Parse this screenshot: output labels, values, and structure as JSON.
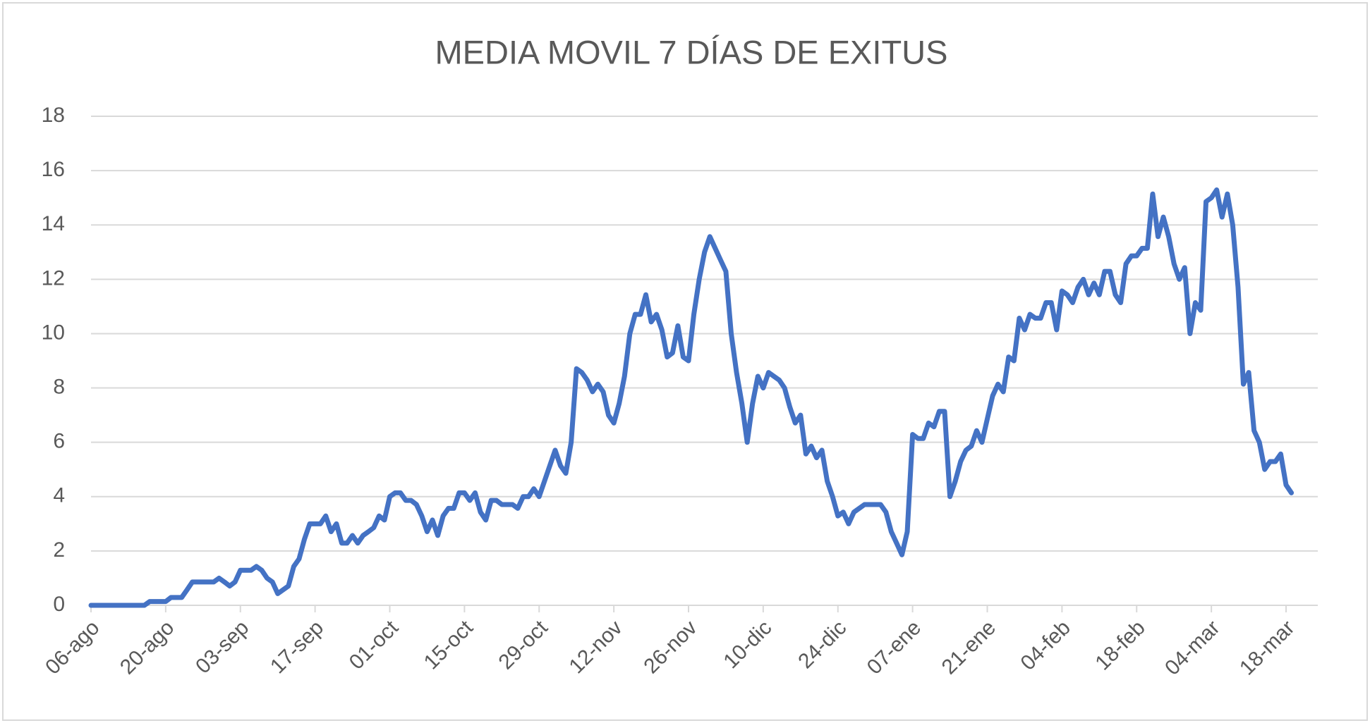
{
  "chart_data": {
    "type": "line",
    "title": "MEDIA MOVIL 7 DÍAS DE EXITUS",
    "categories": [
      "06-ago",
      null,
      null,
      null,
      null,
      null,
      null,
      null,
      null,
      null,
      null,
      null,
      null,
      null,
      "20-ago",
      null,
      null,
      null,
      null,
      null,
      null,
      null,
      null,
      null,
      null,
      null,
      null,
      null,
      "03-sep",
      null,
      null,
      null,
      null,
      null,
      null,
      null,
      null,
      null,
      null,
      null,
      null,
      null,
      "17-sep",
      null,
      null,
      null,
      null,
      null,
      null,
      null,
      null,
      null,
      null,
      null,
      null,
      null,
      "01-oct",
      null,
      null,
      null,
      null,
      null,
      null,
      null,
      null,
      null,
      null,
      null,
      null,
      null,
      "15-oct",
      null,
      null,
      null,
      null,
      null,
      null,
      null,
      null,
      null,
      null,
      null,
      null,
      null,
      "29-oct",
      null,
      null,
      null,
      null,
      null,
      null,
      null,
      null,
      null,
      null,
      null,
      null,
      null,
      "12-nov",
      null,
      null,
      null,
      null,
      null,
      null,
      null,
      null,
      null,
      null,
      null,
      null,
      null,
      "26-nov",
      null,
      null,
      null,
      null,
      null,
      null,
      null,
      null,
      null,
      null,
      null,
      null,
      null,
      "10-dic",
      null,
      null,
      null,
      null,
      null,
      null,
      null,
      null,
      null,
      null,
      null,
      null,
      null,
      "24-dic",
      null,
      null,
      null,
      null,
      null,
      null,
      null,
      null,
      null,
      null,
      null,
      null,
      null,
      "07-ene",
      null,
      null,
      null,
      null,
      null,
      null,
      null,
      null,
      null,
      null,
      null,
      null,
      null,
      "21-ene",
      null,
      null,
      null,
      null,
      null,
      null,
      null,
      null,
      null,
      null,
      null,
      null,
      null,
      "04-feb",
      null,
      null,
      null,
      null,
      null,
      null,
      null,
      null,
      null,
      null,
      null,
      null,
      null,
      "18-feb",
      null,
      null,
      null,
      null,
      null,
      null,
      null,
      null,
      null,
      null,
      null,
      null,
      null,
      "04-mar",
      null,
      null,
      null,
      null,
      null,
      null,
      null,
      null,
      null,
      null,
      null,
      null,
      null,
      "18-mar",
      null
    ],
    "series": [
      {
        "name": "Media móvil",
        "color": "#4472c4",
        "values": [
          0,
          0,
          0,
          0,
          0,
          0,
          0,
          0,
          0,
          0,
          0,
          0.14,
          0.14,
          0.14,
          0.14,
          0.29,
          0.29,
          0.29,
          0.57,
          0.86,
          0.86,
          0.86,
          0.86,
          0.86,
          1.0,
          0.86,
          0.71,
          0.86,
          1.29,
          1.29,
          1.29,
          1.43,
          1.29,
          1.0,
          0.86,
          0.43,
          0.57,
          0.71,
          1.43,
          1.71,
          2.43,
          3.0,
          3.0,
          3.0,
          3.29,
          2.71,
          3.0,
          2.29,
          2.29,
          2.57,
          2.29,
          2.57,
          2.71,
          2.86,
          3.29,
          3.14,
          4.0,
          4.14,
          4.14,
          3.86,
          3.86,
          3.71,
          3.29,
          2.71,
          3.14,
          2.57,
          3.29,
          3.57,
          3.57,
          4.14,
          4.14,
          3.86,
          4.14,
          3.43,
          3.14,
          3.86,
          3.86,
          3.71,
          3.71,
          3.71,
          3.57,
          4.0,
          4.0,
          4.29,
          4.0,
          4.57,
          5.14,
          5.71,
          5.14,
          4.86,
          6.0,
          8.71,
          8.57,
          8.29,
          7.86,
          8.14,
          7.86,
          7.0,
          6.71,
          7.43,
          8.43,
          10.0,
          10.71,
          10.71,
          11.43,
          10.43,
          10.71,
          10.14,
          9.14,
          9.29,
          10.29,
          9.14,
          9.0,
          10.71,
          12.0,
          13.0,
          13.57,
          13.14,
          12.71,
          12.29,
          10.0,
          8.57,
          7.43,
          6.0,
          7.43,
          8.43,
          8.0,
          8.57,
          8.43,
          8.29,
          8.0,
          7.29,
          6.71,
          7.0,
          5.57,
          5.86,
          5.43,
          5.71,
          4.57,
          4.0,
          3.29,
          3.43,
          3.0,
          3.43,
          3.57,
          3.71,
          3.71,
          3.71,
          3.71,
          3.43,
          2.71,
          2.29,
          1.86,
          2.71,
          6.29,
          6.14,
          6.14,
          6.71,
          6.57,
          7.14,
          7.14,
          4.0,
          4.57,
          5.29,
          5.71,
          5.86,
          6.43,
          6.0,
          6.86,
          7.71,
          8.14,
          7.86,
          9.14,
          9.0,
          10.57,
          10.14,
          10.71,
          10.57,
          10.57,
          11.14,
          11.14,
          10.14,
          11.57,
          11.43,
          11.14,
          11.71,
          12.0,
          11.43,
          11.86,
          11.43,
          12.29,
          12.29,
          11.43,
          11.14,
          12.57,
          12.86,
          12.86,
          13.14,
          13.14,
          15.14,
          13.57,
          14.29,
          13.57,
          12.57,
          12.0,
          12.43,
          10.0,
          11.14,
          10.86,
          14.86,
          15.0,
          15.29,
          14.29,
          15.14,
          14.0,
          11.71,
          8.14,
          8.57,
          6.43,
          6.0,
          5.0,
          5.29,
          5.29,
          5.57,
          4.43,
          4.14
        ]
      }
    ],
    "ylim": [
      0,
      18
    ],
    "yticks": [
      0,
      2,
      4,
      6,
      8,
      10,
      12,
      14,
      16,
      18
    ],
    "grid": true
  }
}
